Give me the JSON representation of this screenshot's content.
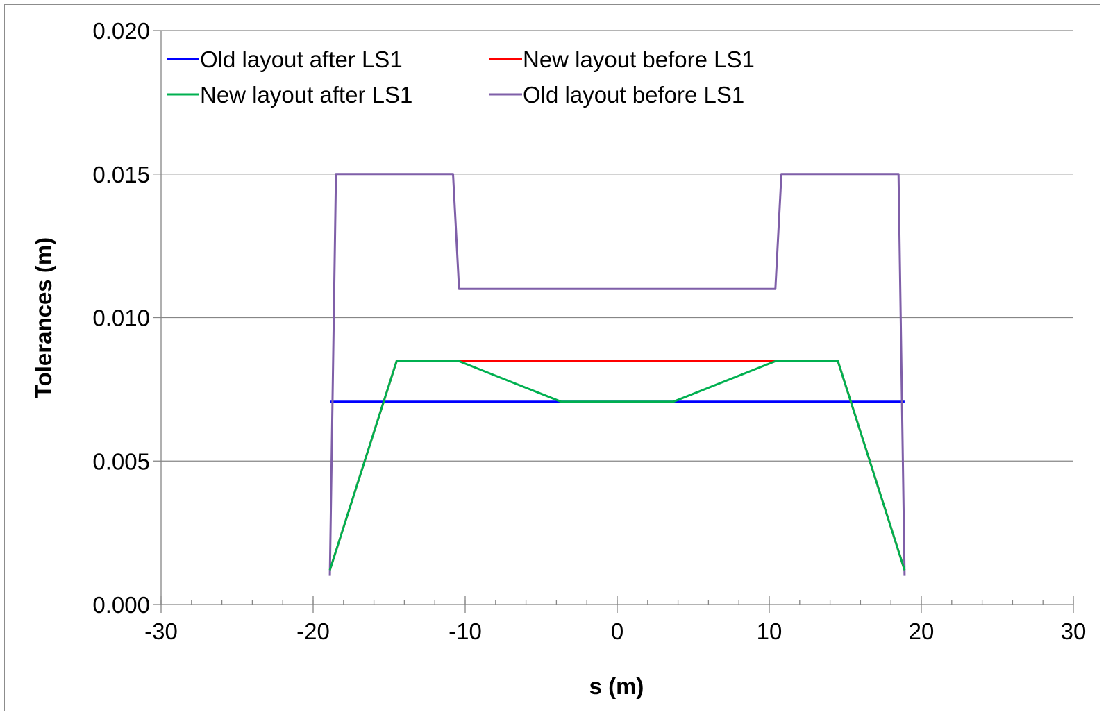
{
  "chart_data": {
    "type": "line",
    "title": "",
    "xlabel": "s (m)",
    "ylabel": "Tolerances (m)",
    "xlim": [
      -30,
      30
    ],
    "ylim": [
      0,
      0.02
    ],
    "x_major_step": 10,
    "x_minor_step": 2,
    "y_major_step": 0.005,
    "y_tick_decimals": 3,
    "grid": {
      "horizontal_major": true,
      "vertical": false
    },
    "legend": {
      "placement": "top-left",
      "columns": 2
    },
    "series": [
      {
        "name": "Old layout after LS1",
        "color": "#0000ff",
        "x": [
          -18.9,
          18.9
        ],
        "y": [
          0.00707,
          0.00707
        ]
      },
      {
        "name": "New layout before LS1",
        "color": "#ff0000",
        "x": [
          -18.9,
          -14.5,
          -10.5,
          10.5,
          14.5,
          18.9
        ],
        "y": [
          0.0012,
          0.0085,
          0.0085,
          0.0085,
          0.0085,
          0.0012
        ]
      },
      {
        "name": "New layout after LS1",
        "color": "#00b050",
        "x": [
          -18.9,
          -14.5,
          -10.5,
          -3.7,
          3.7,
          10.5,
          14.5,
          18.9
        ],
        "y": [
          0.0012,
          0.0085,
          0.0085,
          0.00707,
          0.00707,
          0.0085,
          0.0085,
          0.0012
        ]
      },
      {
        "name": "Old layout before LS1",
        "color": "#7f5fa8",
        "x": [
          -18.9,
          -18.5,
          -10.8,
          -10.4,
          10.4,
          10.8,
          18.5,
          18.9
        ],
        "y": [
          0.001,
          0.015,
          0.015,
          0.011,
          0.011,
          0.015,
          0.015,
          0.001
        ]
      }
    ]
  }
}
